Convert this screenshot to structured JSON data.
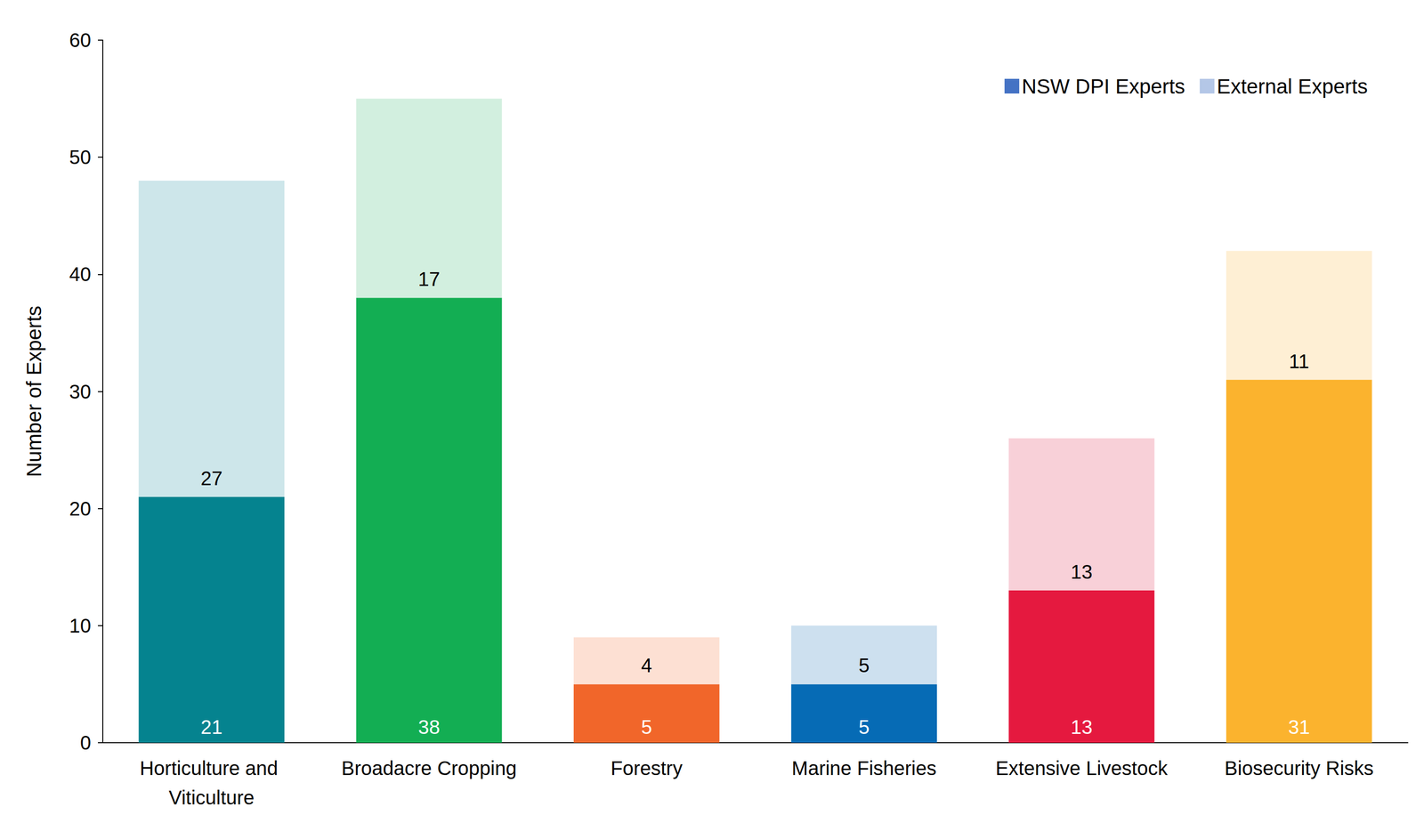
{
  "chart_data": {
    "type": "bar",
    "stacked": true,
    "categories": [
      "Horticulture and Viticulture",
      "Broadacre Cropping",
      "Forestry",
      "Marine Fisheries",
      "Extensive Livestock",
      "Biosecurity Risks"
    ],
    "y_label": "Number of Experts",
    "ylim": [
      0,
      60
    ],
    "yticks": [
      0,
      10,
      20,
      30,
      40,
      50,
      60
    ],
    "grid": false,
    "legend": "upper right",
    "data_labels": true,
    "series": [
      {
        "name": "NSW DPI Experts",
        "color": "#4472c4",
        "colors": [
          "#05838f",
          "#13ae53",
          "#f1662a",
          "#066bb5",
          "#e5193f",
          "#fbb32e"
        ],
        "values": [
          21,
          38,
          5,
          5,
          13,
          31
        ]
      },
      {
        "name": "External Experts",
        "color": "#b4c7e7",
        "colors": [
          "#cde6ea",
          "#d2efdf",
          "#fde0d3",
          "#cde0ef",
          "#f8d0d8",
          "#feefd4"
        ],
        "values": [
          27,
          17,
          4,
          5,
          13,
          11
        ]
      }
    ]
  }
}
